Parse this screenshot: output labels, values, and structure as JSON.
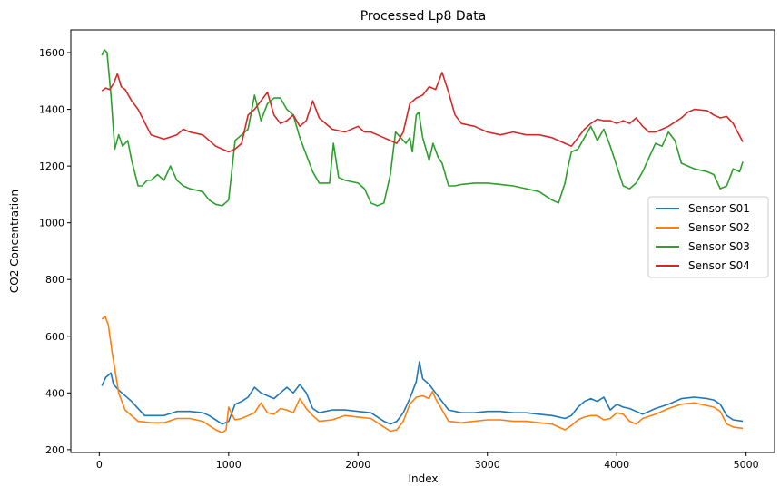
{
  "chart_data": {
    "type": "line",
    "title": "Processed Lp8 Data",
    "xlabel": "Index",
    "ylabel": "CO2 Concentration",
    "xlim": [
      -220,
      5220
    ],
    "ylim": [
      190,
      1680
    ],
    "xticks": [
      0,
      1000,
      2000,
      3000,
      4000,
      5000
    ],
    "yticks": [
      200,
      400,
      600,
      800,
      1000,
      1200,
      1400,
      1600
    ],
    "grid": false,
    "legend_position": "center-right",
    "series": [
      {
        "name": "Sensor S01",
        "color": "#1f77b4",
        "x": [
          20,
          50,
          90,
          110,
          150,
          250,
          350,
          450,
          500,
          600,
          700,
          800,
          850,
          950,
          1000,
          1050,
          1100,
          1150,
          1200,
          1250,
          1300,
          1350,
          1400,
          1450,
          1500,
          1550,
          1600,
          1650,
          1700,
          1800,
          1900,
          2000,
          2100,
          2200,
          2250,
          2300,
          2350,
          2400,
          2450,
          2475,
          2500,
          2550,
          2600,
          2700,
          2800,
          2900,
          3000,
          3100,
          3200,
          3300,
          3400,
          3500,
          3600,
          3650,
          3700,
          3750,
          3800,
          3850,
          3900,
          3950,
          4000,
          4050,
          4100,
          4200,
          4300,
          4400,
          4500,
          4600,
          4700,
          4750,
          4800,
          4850,
          4900,
          4975
        ],
        "values": [
          425,
          455,
          470,
          430,
          410,
          370,
          320,
          320,
          320,
          335,
          335,
          330,
          320,
          290,
          300,
          360,
          370,
          385,
          420,
          400,
          390,
          380,
          400,
          420,
          400,
          430,
          400,
          345,
          330,
          340,
          340,
          335,
          330,
          300,
          290,
          300,
          330,
          380,
          440,
          510,
          450,
          430,
          400,
          340,
          330,
          330,
          335,
          335,
          330,
          330,
          325,
          320,
          310,
          320,
          350,
          370,
          380,
          370,
          385,
          340,
          360,
          350,
          345,
          325,
          345,
          360,
          380,
          385,
          380,
          375,
          360,
          320,
          305,
          300
        ]
      },
      {
        "name": "Sensor S02",
        "color": "#ff7f0e",
        "x": [
          20,
          45,
          70,
          100,
          150,
          170,
          200,
          300,
          400,
          500,
          600,
          700,
          800,
          900,
          950,
          980,
          1000,
          1030,
          1050,
          1100,
          1150,
          1200,
          1250,
          1300,
          1350,
          1400,
          1450,
          1500,
          1550,
          1580,
          1600,
          1650,
          1700,
          1800,
          1900,
          2000,
          2100,
          2200,
          2250,
          2300,
          2350,
          2400,
          2450,
          2500,
          2550,
          2575,
          2600,
          2700,
          2800,
          2900,
          3000,
          3100,
          3200,
          3300,
          3400,
          3500,
          3550,
          3600,
          3650,
          3700,
          3750,
          3800,
          3850,
          3900,
          3950,
          4000,
          4050,
          4100,
          4150,
          4200,
          4300,
          4400,
          4500,
          4600,
          4700,
          4750,
          4800,
          4850,
          4900,
          4975
        ],
        "values": [
          660,
          670,
          640,
          540,
          400,
          375,
          340,
          300,
          295,
          295,
          310,
          310,
          300,
          270,
          260,
          270,
          350,
          320,
          305,
          310,
          320,
          330,
          365,
          330,
          325,
          345,
          340,
          330,
          380,
          360,
          345,
          320,
          300,
          305,
          320,
          315,
          310,
          280,
          265,
          270,
          300,
          360,
          385,
          390,
          380,
          405,
          380,
          300,
          295,
          300,
          305,
          305,
          300,
          300,
          295,
          290,
          280,
          270,
          285,
          305,
          315,
          320,
          320,
          305,
          310,
          330,
          325,
          300,
          290,
          310,
          325,
          345,
          360,
          365,
          355,
          350,
          335,
          290,
          280,
          275
        ]
      },
      {
        "name": "Sensor S03",
        "color": "#2ca02c",
        "x": [
          20,
          40,
          60,
          90,
          120,
          150,
          180,
          220,
          250,
          300,
          330,
          370,
          400,
          450,
          500,
          550,
          600,
          650,
          700,
          800,
          850,
          900,
          950,
          1000,
          1050,
          1100,
          1150,
          1200,
          1250,
          1300,
          1350,
          1400,
          1450,
          1500,
          1550,
          1600,
          1650,
          1700,
          1780,
          1810,
          1850,
          1900,
          2000,
          2050,
          2100,
          2150,
          2200,
          2250,
          2290,
          2330,
          2370,
          2400,
          2420,
          2450,
          2470,
          2500,
          2550,
          2580,
          2620,
          2650,
          2700,
          2750,
          2800,
          2900,
          3000,
          3100,
          3200,
          3300,
          3400,
          3500,
          3550,
          3600,
          3620,
          3650,
          3700,
          3750,
          3800,
          3850,
          3900,
          3950,
          4000,
          4050,
          4100,
          4150,
          4200,
          4250,
          4300,
          4350,
          4400,
          4450,
          4500,
          4550,
          4600,
          4700,
          4750,
          4800,
          4850,
          4900,
          4950,
          4975
        ],
        "values": [
          1590,
          1610,
          1600,
          1450,
          1260,
          1310,
          1270,
          1290,
          1220,
          1130,
          1130,
          1150,
          1150,
          1170,
          1150,
          1200,
          1150,
          1130,
          1120,
          1110,
          1080,
          1065,
          1060,
          1080,
          1290,
          1310,
          1330,
          1450,
          1360,
          1420,
          1440,
          1440,
          1400,
          1380,
          1300,
          1240,
          1180,
          1140,
          1140,
          1280,
          1160,
          1150,
          1140,
          1120,
          1070,
          1060,
          1070,
          1170,
          1320,
          1300,
          1280,
          1300,
          1250,
          1380,
          1390,
          1300,
          1220,
          1280,
          1230,
          1210,
          1130,
          1130,
          1135,
          1140,
          1140,
          1135,
          1130,
          1120,
          1110,
          1080,
          1070,
          1140,
          1190,
          1250,
          1260,
          1300,
          1340,
          1290,
          1330,
          1270,
          1200,
          1130,
          1120,
          1140,
          1180,
          1230,
          1280,
          1270,
          1320,
          1290,
          1210,
          1200,
          1190,
          1180,
          1170,
          1120,
          1130,
          1190,
          1180,
          1215
        ]
      },
      {
        "name": "Sensor S04",
        "color": "#d62728",
        "x": [
          20,
          50,
          80,
          110,
          140,
          170,
          200,
          250,
          300,
          400,
          500,
          600,
          650,
          700,
          800,
          900,
          950,
          1000,
          1050,
          1100,
          1150,
          1200,
          1250,
          1300,
          1350,
          1400,
          1450,
          1500,
          1550,
          1600,
          1650,
          1700,
          1800,
          1900,
          2000,
          2050,
          2100,
          2200,
          2250,
          2300,
          2350,
          2400,
          2450,
          2500,
          2550,
          2600,
          2650,
          2700,
          2750,
          2800,
          2900,
          3000,
          3100,
          3200,
          3300,
          3400,
          3500,
          3550,
          3600,
          3650,
          3700,
          3750,
          3800,
          3850,
          3900,
          3950,
          4000,
          4050,
          4100,
          4150,
          4200,
          4250,
          4300,
          4400,
          4500,
          4550,
          4600,
          4700,
          4750,
          4800,
          4850,
          4900,
          4975
        ],
        "values": [
          1465,
          1475,
          1470,
          1490,
          1525,
          1480,
          1470,
          1430,
          1400,
          1310,
          1295,
          1310,
          1330,
          1320,
          1310,
          1270,
          1260,
          1250,
          1260,
          1280,
          1380,
          1400,
          1430,
          1460,
          1380,
          1350,
          1360,
          1380,
          1340,
          1360,
          1430,
          1370,
          1330,
          1320,
          1340,
          1320,
          1320,
          1300,
          1290,
          1280,
          1320,
          1420,
          1440,
          1450,
          1480,
          1470,
          1530,
          1460,
          1380,
          1350,
          1340,
          1320,
          1310,
          1320,
          1310,
          1310,
          1300,
          1290,
          1280,
          1270,
          1300,
          1330,
          1350,
          1365,
          1360,
          1360,
          1350,
          1360,
          1350,
          1370,
          1340,
          1320,
          1320,
          1340,
          1370,
          1390,
          1400,
          1395,
          1380,
          1370,
          1375,
          1350,
          1285
        ]
      }
    ]
  }
}
